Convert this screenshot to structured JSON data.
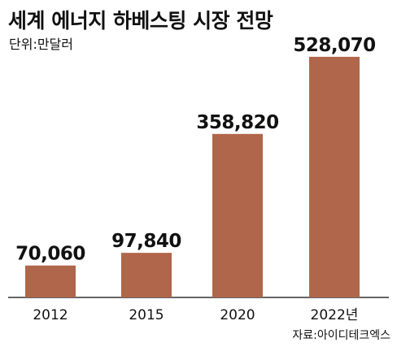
{
  "chart_data": {
    "type": "bar",
    "title": "세계 에너지 하베스팅 시장 전망",
    "unit": "단위:만달러",
    "source": "자료:아이디테크엑스",
    "categories": [
      "2012",
      "2015",
      "2020",
      "2022년"
    ],
    "values": [
      70060,
      97840,
      358820,
      528070
    ],
    "value_labels": [
      "70,060",
      "97,840",
      "358,820",
      "528,070"
    ],
    "xlabel": "",
    "ylabel": "",
    "ylim": [
      0,
      560000
    ],
    "grid": false,
    "legend": "none",
    "bar_color": "#b0664a",
    "axis_color": "#333333"
  }
}
